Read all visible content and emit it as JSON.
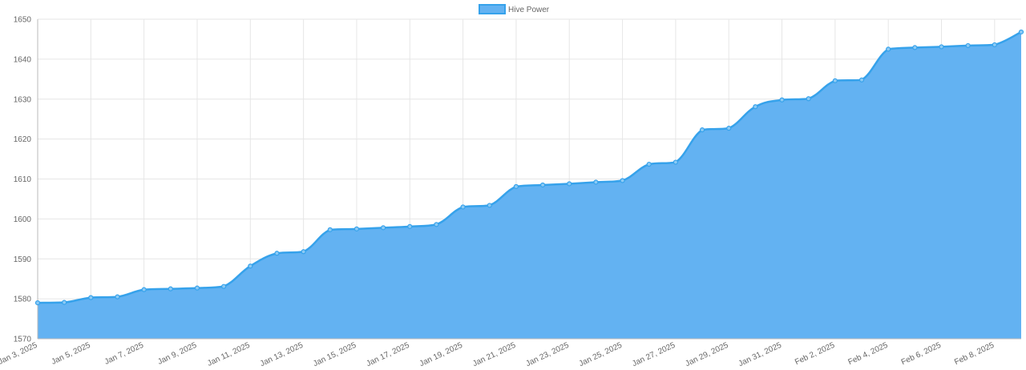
{
  "chart_data": {
    "type": "area",
    "title": "",
    "xlabel": "",
    "ylabel": "",
    "legend": {
      "position": "top-center",
      "entries": [
        "Hive Power"
      ]
    },
    "grid": true,
    "ylim": [
      1570,
      1650
    ],
    "y_ticks": [
      1570,
      1580,
      1590,
      1600,
      1610,
      1620,
      1630,
      1640,
      1650
    ],
    "x_tick_labels": [
      "Jan 3, 2025",
      "Jan 5, 2025",
      "Jan 7, 2025",
      "Jan 9, 2025",
      "Jan 11, 2025",
      "Jan 13, 2025",
      "Jan 15, 2025",
      "Jan 17, 2025",
      "Jan 19, 2025",
      "Jan 21, 2025",
      "Jan 23, 2025",
      "Jan 25, 2025",
      "Jan 27, 2025",
      "Jan 29, 2025",
      "Jan 31, 2025",
      "Feb 2, 2025",
      "Feb 4, 2025",
      "Feb 6, 2025",
      "Feb 8, 2025"
    ],
    "x": [
      "Jan 3, 2025",
      "Jan 4, 2025",
      "Jan 5, 2025",
      "Jan 6, 2025",
      "Jan 7, 2025",
      "Jan 8, 2025",
      "Jan 9, 2025",
      "Jan 10, 2025",
      "Jan 11, 2025",
      "Jan 12, 2025",
      "Jan 13, 2025",
      "Jan 14, 2025",
      "Jan 15, 2025",
      "Jan 16, 2025",
      "Jan 17, 2025",
      "Jan 18, 2025",
      "Jan 19, 2025",
      "Jan 20, 2025",
      "Jan 21, 2025",
      "Jan 22, 2025",
      "Jan 23, 2025",
      "Jan 24, 2025",
      "Jan 25, 2025",
      "Jan 26, 2025",
      "Jan 27, 2025",
      "Jan 28, 2025",
      "Jan 29, 2025",
      "Jan 30, 2025",
      "Jan 31, 2025",
      "Feb 1, 2025",
      "Feb 2, 2025",
      "Feb 3, 2025",
      "Feb 4, 2025",
      "Feb 5, 2025",
      "Feb 6, 2025",
      "Feb 7, 2025",
      "Feb 8, 2025",
      "Feb 9, 2025"
    ],
    "series": [
      {
        "name": "Hive Power",
        "color": "#36A2EB",
        "fill": "#63B2F2",
        "values": [
          1579,
          1579.1,
          1580.3,
          1580.5,
          1582.3,
          1582.5,
          1582.7,
          1583.1,
          1588.2,
          1591.4,
          1591.8,
          1597.3,
          1597.5,
          1597.8,
          1598.1,
          1598.6,
          1603.0,
          1603.4,
          1608.1,
          1608.5,
          1608.8,
          1609.2,
          1609.6,
          1613.7,
          1614.2,
          1622.3,
          1622.7,
          1628.1,
          1629.8,
          1630.1,
          1634.6,
          1634.8,
          1642.5,
          1642.9,
          1643.1,
          1643.4,
          1643.6,
          1646.8
        ]
      }
    ]
  }
}
